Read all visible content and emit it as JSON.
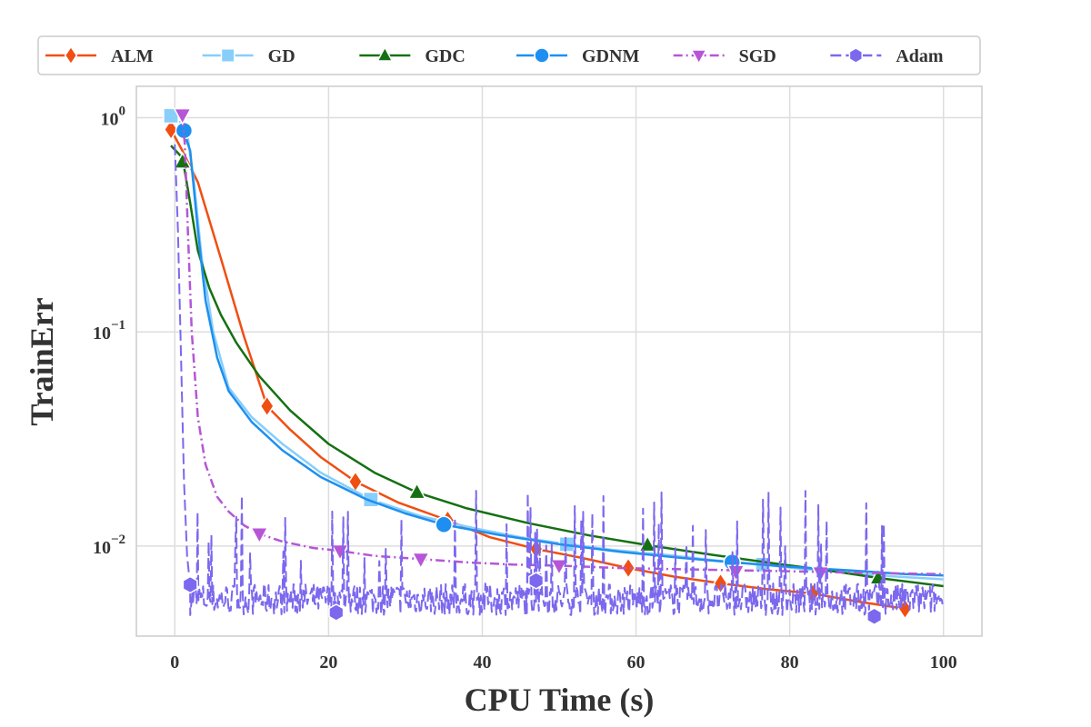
{
  "chart_data": {
    "type": "line",
    "title": "",
    "xlabel": "CPU Time (s)",
    "ylabel": "TrainErr",
    "xlim": [
      -5,
      105
    ],
    "ylim": [
      0.0038,
      1.4
    ],
    "yscale": "log",
    "grid": true,
    "legend_position": "top",
    "x_ticks": [
      {
        "value": 0,
        "label": "0"
      },
      {
        "value": 20,
        "label": "20"
      },
      {
        "value": 40,
        "label": "40"
      },
      {
        "value": 60,
        "label": "60"
      },
      {
        "value": 80,
        "label": "80"
      },
      {
        "value": 100,
        "label": "100"
      }
    ],
    "y_ticks": [
      {
        "value": 1,
        "base": "10",
        "exp": "0"
      },
      {
        "value": 0.1,
        "base": "10",
        "exp": "−1"
      },
      {
        "value": 0.01,
        "base": "10",
        "exp": "−2"
      }
    ],
    "series": [
      {
        "name": "ALM",
        "color": "#f04e12",
        "marker": "diamond",
        "dash": "",
        "x": [
          -0.5,
          1,
          3,
          6,
          9,
          12,
          15,
          19,
          23.5,
          29,
          35.5,
          41,
          47,
          53,
          59,
          65,
          71,
          77,
          83,
          89,
          95
        ],
        "y": [
          0.88,
          0.7,
          0.5,
          0.22,
          0.095,
          0.045,
          0.035,
          0.026,
          0.02,
          0.016,
          0.0132,
          0.011,
          0.0097,
          0.0088,
          0.0079,
          0.0072,
          0.0067,
          0.0063,
          0.006,
          0.0055,
          0.0051
        ],
        "markers_x": [
          -0.5,
          12,
          23.5,
          35.5,
          47,
          59,
          71,
          83,
          95
        ],
        "markers_y": [
          0.88,
          0.045,
          0.02,
          0.0132,
          0.0097,
          0.0079,
          0.0067,
          0.006,
          0.0051
        ]
      },
      {
        "name": "GD",
        "color": "#87cefa",
        "marker": "square",
        "dash": "",
        "x": [
          -0.5,
          1.5,
          2.5,
          3.5,
          5,
          7,
          10,
          14,
          19,
          25.5,
          32,
          39,
          45,
          51,
          57,
          64,
          70,
          76.5,
          82,
          88,
          94,
          100
        ],
        "y": [
          1.02,
          0.9,
          0.5,
          0.22,
          0.1,
          0.055,
          0.04,
          0.03,
          0.022,
          0.0165,
          0.0138,
          0.0121,
          0.011,
          0.0102,
          0.0096,
          0.0091,
          0.0086,
          0.0082,
          0.0078,
          0.0075,
          0.0072,
          0.007
        ],
        "markers_x": [
          -0.5,
          25.5,
          51,
          76.5
        ],
        "markers_y": [
          1.02,
          0.0165,
          0.0102,
          0.0082
        ]
      },
      {
        "name": "GDC",
        "color": "#157012",
        "marker": "triangle-up",
        "dash": "",
        "x": [
          -0.5,
          1,
          2,
          3,
          4.5,
          6,
          8,
          11,
          15,
          20,
          26,
          31.5,
          38,
          46,
          54,
          61.5,
          70,
          78,
          85,
          91.5,
          100
        ],
        "y": [
          0.74,
          0.65,
          0.4,
          0.24,
          0.16,
          0.12,
          0.089,
          0.062,
          0.043,
          0.03,
          0.022,
          0.0178,
          0.015,
          0.0128,
          0.0112,
          0.0101,
          0.0091,
          0.0083,
          0.0077,
          0.0071,
          0.0065
        ],
        "markers_x": [
          1,
          31.5,
          61.5,
          91.5
        ],
        "markers_y": [
          0.62,
          0.0178,
          0.0101,
          0.0071
        ]
      },
      {
        "name": "GDNM",
        "color": "#1e8ff0",
        "marker": "circle",
        "dash": "",
        "x": [
          1,
          2,
          3,
          4,
          5.5,
          7,
          10,
          14,
          19,
          25,
          30,
          35,
          42,
          50,
          58,
          66,
          72.5,
          80,
          88,
          95,
          100
        ],
        "y": [
          0.9,
          0.7,
          0.3,
          0.14,
          0.076,
          0.053,
          0.038,
          0.028,
          0.021,
          0.0165,
          0.0142,
          0.0126,
          0.0113,
          0.0102,
          0.0094,
          0.0088,
          0.0084,
          0.008,
          0.0077,
          0.0074,
          0.0073
        ],
        "markers_x": [
          1.2,
          35,
          72.5
        ],
        "markers_y": [
          0.87,
          0.0126,
          0.0084
        ]
      },
      {
        "name": "SGD",
        "color": "#b656d6",
        "marker": "triangle-down",
        "dash": "10 4 2 4",
        "x": [
          1,
          1.3,
          1.7,
          2.2,
          3,
          4,
          5.5,
          7,
          9,
          11,
          14,
          18,
          21.5,
          26,
          32,
          38,
          44,
          50,
          58,
          66,
          74,
          82,
          90,
          100
        ],
        "y": [
          1.0,
          0.75,
          0.3,
          0.1,
          0.04,
          0.024,
          0.017,
          0.0145,
          0.0125,
          0.0114,
          0.0105,
          0.0098,
          0.0095,
          0.009,
          0.0087,
          0.0084,
          0.0082,
          0.0081,
          0.0079,
          0.0078,
          0.0077,
          0.0076,
          0.0075,
          0.0074
        ],
        "markers_x": [
          1,
          11,
          21.5,
          32,
          50,
          73,
          84
        ],
        "markers_y": [
          1.03,
          0.0114,
          0.0095,
          0.0087,
          0.0081,
          0.0076,
          0.0075
        ]
      },
      {
        "name": "Adam",
        "color": "#7b68ee",
        "marker": "hexagon",
        "dash": "12 5",
        "x": [
          0,
          0.4,
          0.8,
          1.2,
          1.6,
          2
        ],
        "y": [
          0.75,
          0.3,
          0.08,
          0.02,
          0.009,
          0.0065
        ],
        "noise_from": 2,
        "noise_to": 100,
        "noise_low": 0.0043,
        "noise_high": 0.0085,
        "markers_x": [
          2,
          21,
          47,
          91
        ],
        "markers_y": [
          0.0066,
          0.0049,
          0.0069,
          0.0047
        ]
      }
    ]
  }
}
